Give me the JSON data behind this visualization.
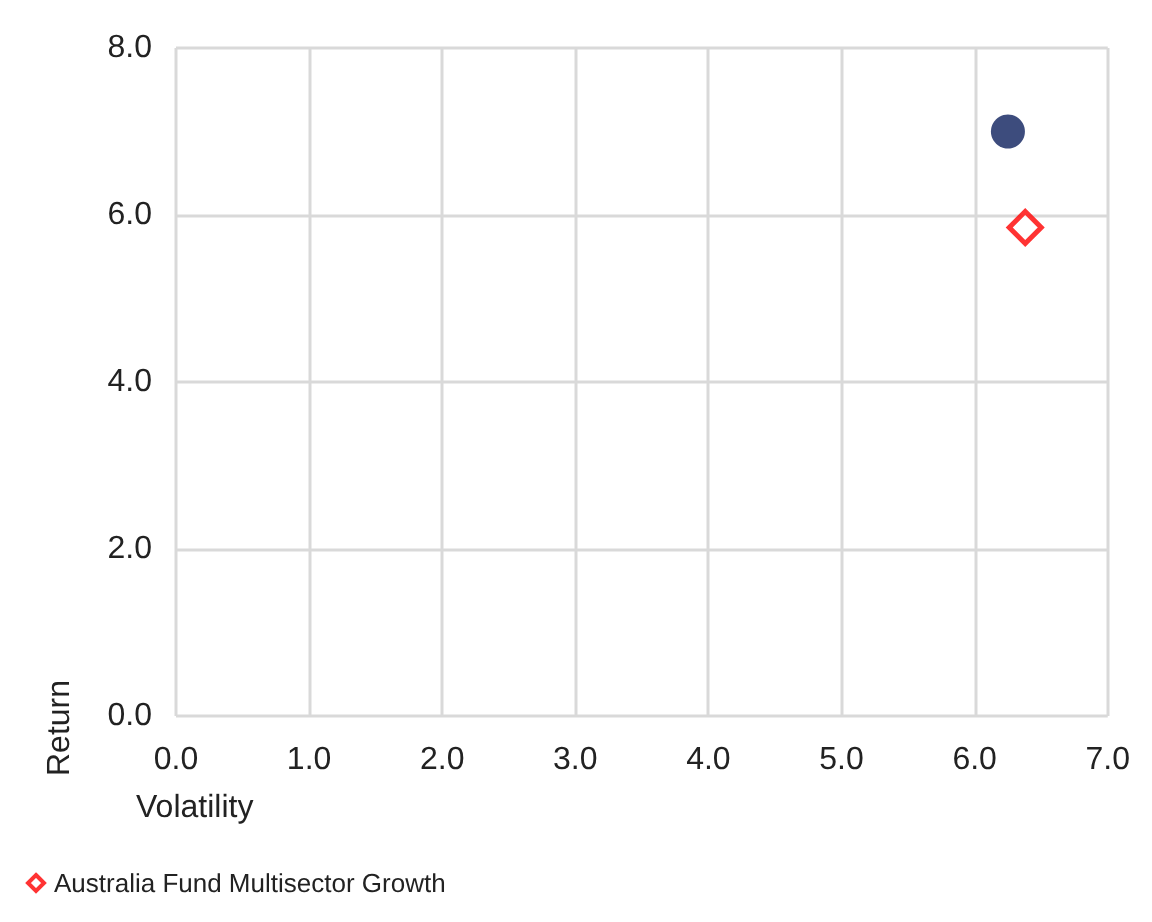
{
  "chart_data": {
    "type": "scatter",
    "xlabel": "Volatility",
    "ylabel": "Return",
    "series": [
      {
        "color": "#0d1f5c",
        "marker": "circle",
        "x": [
          6.25
        ],
        "values": [
          7.0
        ]
      },
      {
        "name": "Australia Fund Multisector Growth",
        "color": "#ff0000",
        "marker": "diamond",
        "x": [
          6.38
        ],
        "values": [
          5.85
        ]
      }
    ],
    "xlim": [
      0,
      7
    ],
    "ylim": [
      0,
      8
    ],
    "xticks": [
      {
        "value": 0,
        "label": "0.0"
      },
      {
        "value": 1,
        "label": "1.0"
      },
      {
        "value": 2,
        "label": "2.0"
      },
      {
        "value": 3,
        "label": "3.0"
      },
      {
        "value": 4,
        "label": "4.0"
      },
      {
        "value": 5,
        "label": "5.0"
      },
      {
        "value": 6,
        "label": "6.0"
      },
      {
        "value": 7,
        "label": "7.0"
      }
    ],
    "yticks": [
      {
        "value": 0,
        "label": "0.0"
      },
      {
        "value": 2,
        "label": "2.0"
      },
      {
        "value": 4,
        "label": "4.0"
      },
      {
        "value": 6,
        "label": "6.0"
      },
      {
        "value": 8,
        "label": "8.0"
      }
    ],
    "grid": true,
    "legend": "bottom"
  }
}
